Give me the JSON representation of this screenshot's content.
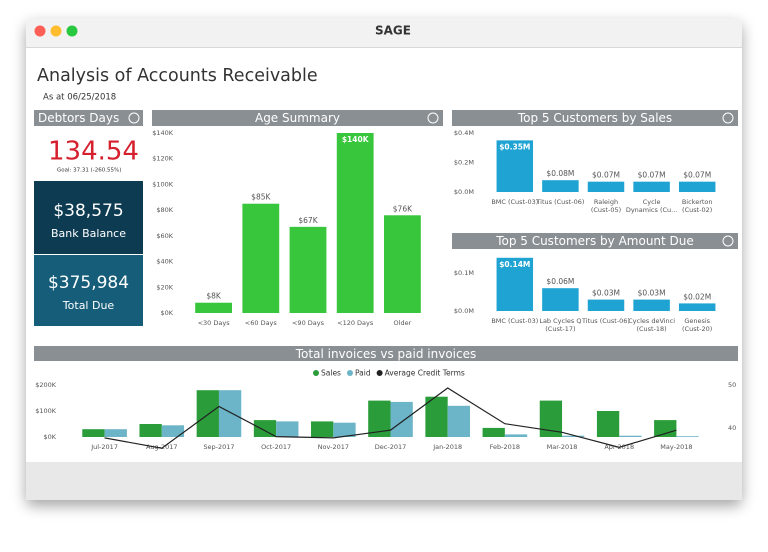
{
  "window_title": "SAGE",
  "header": {
    "title": "Analysis of Accounts Receivable",
    "subtitle": "As at 06/25/2018"
  },
  "kpis": {
    "debtors_title": "Debtors Days",
    "debtors_value": "134.54",
    "debtors_goal": "Goal: 37.31 (-260.55%)",
    "bank_value": "$38,575",
    "bank_label": "Bank Balance",
    "due_value": "$375,984",
    "due_label": "Total Due"
  },
  "chart_data": [
    {
      "type": "bar",
      "title": "Age Summary",
      "categories": [
        "<30 Days",
        "<60 Days",
        "<90 Days",
        "<120 Days",
        "Older"
      ],
      "values": [
        8,
        85,
        67,
        140,
        76
      ],
      "value_labels": [
        "$8K",
        "$85K",
        "$67K",
        "$140K",
        "$76K"
      ],
      "color": "#37c63c",
      "ylim": [
        0,
        140
      ],
      "yticks": [
        {
          "value": 0,
          "label": "$0K"
        },
        {
          "value": 20,
          "label": "$20K"
        },
        {
          "value": 40,
          "label": "$40K"
        },
        {
          "value": 60,
          "label": "$60K"
        },
        {
          "value": 80,
          "label": "$80K"
        },
        {
          "value": 100,
          "label": "$100K"
        },
        {
          "value": 120,
          "label": "$120K"
        },
        {
          "value": 140,
          "label": "$140K"
        }
      ]
    },
    {
      "type": "bar",
      "title": "Top 5 Customers by Sales",
      "categories": [
        "BMC (Cust-03)",
        "Titus (Cust-06)",
        "Raleigh\n(Cust-05)",
        "Cycle\nDynamics (Cu...",
        "Bickerton\n(Cust-02)"
      ],
      "values": [
        0.35,
        0.08,
        0.07,
        0.07,
        0.07
      ],
      "value_labels": [
        "$0.35M",
        "$0.08M",
        "$0.07M",
        "$0.07M",
        "$0.07M"
      ],
      "color": "#1fa3d2",
      "ylim": [
        0,
        0.4
      ],
      "yticks": [
        {
          "value": 0,
          "label": "$0.0M"
        },
        {
          "value": 0.2,
          "label": "$0.2M"
        },
        {
          "value": 0.4,
          "label": "$0.4M"
        }
      ]
    },
    {
      "type": "bar",
      "title": "Top 5 Customers by Amount Due",
      "categories": [
        "BMC (Cust-03)",
        "Lab Cycles Q\n(Cust-17)",
        "Titus (Cust-06)",
        "Cycles deVinci\n(Cust-18)",
        "Genesis\n(Cust-20)"
      ],
      "values": [
        0.14,
        0.06,
        0.03,
        0.03,
        0.02
      ],
      "value_labels": [
        "$0.14M",
        "$0.06M",
        "$0.03M",
        "$0.03M",
        "$0.02M"
      ],
      "color": "#1fa3d2",
      "ylim": [
        0,
        0.15
      ],
      "yticks": [
        {
          "value": 0,
          "label": "$0.0M"
        },
        {
          "value": 0.1,
          "label": "$0.1M"
        }
      ]
    },
    {
      "type": "combo",
      "title": "Total invoices vs paid invoices",
      "categories": [
        "Jul-2017",
        "Aug-2017",
        "Sep-2017",
        "Oct-2017",
        "Nov-2017",
        "Dec-2017",
        "Jan-2018",
        "Feb-2018",
        "Mar-2018",
        "Apr-2018",
        "May-2018"
      ],
      "series": [
        {
          "name": "Sales",
          "color": "#2a9c3a",
          "values": [
            30,
            50,
            180,
            65,
            60,
            140,
            155,
            35,
            140,
            100,
            65
          ]
        },
        {
          "name": "Paid",
          "color": "#6cb4c8",
          "values": [
            30,
            45,
            180,
            60,
            55,
            135,
            120,
            10,
            5,
            5,
            3
          ]
        },
        {
          "name": "Average Credit Terms",
          "color": "#222222",
          "axis": "y2",
          "values": [
            37.7,
            35.3,
            45,
            38,
            37.7,
            39.5,
            49.3,
            41,
            39,
            35.5,
            39.5
          ]
        }
      ],
      "ylim": [
        0,
        200
      ],
      "yticks": [
        {
          "value": 0,
          "label": "$0K"
        },
        {
          "value": 100,
          "label": "$100K"
        },
        {
          "value": 200,
          "label": "$200K"
        }
      ],
      "y2lim": [
        34,
        52
      ],
      "y2ticks": [
        40,
        50
      ]
    }
  ]
}
